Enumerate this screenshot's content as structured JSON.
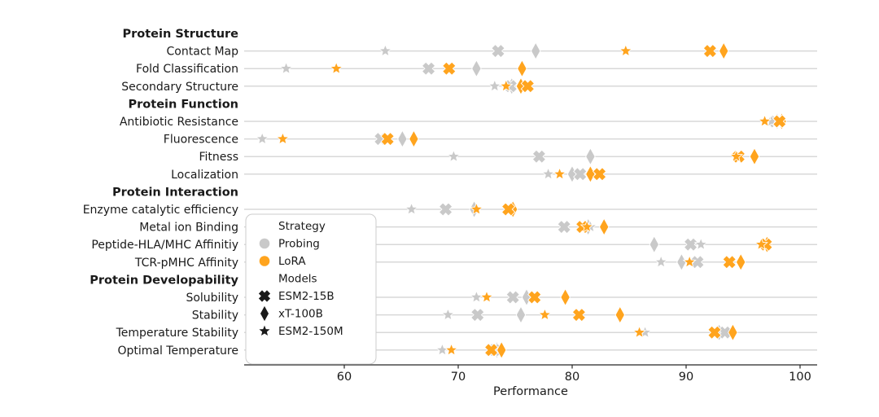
{
  "chart_data": {
    "type": "scatter",
    "title": "",
    "xlabel": "Performance",
    "x_ticks": [
      60,
      70,
      80,
      90,
      100
    ],
    "x_range": [
      51.2,
      101.6
    ],
    "grid": "horizontal-per-category",
    "legend_position": "lower-left-inside",
    "colors": {
      "probing": "#C9C9C9",
      "lora": "#FFA41E",
      "legend_marker": "#1a1a1a",
      "axis": "#262626",
      "grid": "#D8D8D8",
      "text": "#1a1a1a"
    },
    "legend": {
      "strategy_title": "Strategy",
      "strategies": [
        {
          "label": "Probing",
          "key": "probing"
        },
        {
          "label": "LoRA",
          "key": "lora"
        }
      ],
      "models_title": "Models",
      "models": [
        {
          "label": "ESM2-15B",
          "marker": "X"
        },
        {
          "label": "xT-100B",
          "marker": "diamond"
        },
        {
          "label": "ESM2-150M",
          "marker": "star"
        }
      ]
    },
    "groups": [
      {
        "header": "Protein Structure",
        "tasks": [
          {
            "name": "Contact Map",
            "probing": {
              "ESM2-15B": 73.5,
              "xT-100B": 76.8,
              "ESM2-150M": 63.6
            },
            "lora": {
              "ESM2-15B": 92.1,
              "xT-100B": 93.3,
              "ESM2-150M": 84.7
            }
          },
          {
            "name": "Fold Classification",
            "probing": {
              "ESM2-15B": 67.4,
              "xT-100B": 71.6,
              "ESM2-150M": 54.9
            },
            "lora": {
              "ESM2-15B": 69.2,
              "xT-100B": 75.6,
              "ESM2-150M": 59.3
            }
          },
          {
            "name": "Secondary Structure",
            "probing": {
              "ESM2-15B": 74.6,
              "xT-100B": 74.7,
              "ESM2-150M": 73.2
            },
            "lora": {
              "ESM2-15B": 76.1,
              "xT-100B": 75.5,
              "ESM2-150M": 74.2
            }
          }
        ]
      },
      {
        "header": "Protein Function",
        "tasks": [
          {
            "name": "Antibiotic Resistance",
            "probing": {
              "ESM2-15B": 97.8,
              "xT-100B": 98.0,
              "ESM2-150M": 97.5
            },
            "lora": {
              "ESM2-15B": 98.2,
              "xT-100B": 98.4,
              "ESM2-150M": 96.9
            }
          },
          {
            "name": "Fluorescence",
            "probing": {
              "ESM2-15B": 63.2,
              "xT-100B": 65.1,
              "ESM2-150M": 52.8
            },
            "lora": {
              "ESM2-15B": 63.8,
              "xT-100B": 66.1,
              "ESM2-150M": 54.6
            }
          },
          {
            "name": "Fitness",
            "probing": {
              "ESM2-15B": 77.1,
              "xT-100B": 81.6,
              "ESM2-150M": 69.6
            },
            "lora": {
              "ESM2-15B": 94.6,
              "xT-100B": 96.0,
              "ESM2-150M": 94.4
            }
          },
          {
            "name": "Localization",
            "probing": {
              "ESM2-15B": 80.7,
              "xT-100B": 80.0,
              "ESM2-150M": 77.9
            },
            "lora": {
              "ESM2-15B": 82.4,
              "xT-100B": 81.6,
              "ESM2-150M": 78.9
            }
          }
        ]
      },
      {
        "header": "Protein Interaction",
        "tasks": [
          {
            "name": "Enzyme catalytic efficiency",
            "probing": {
              "ESM2-15B": 68.9,
              "xT-100B": 71.4,
              "ESM2-150M": 65.9
            },
            "lora": {
              "ESM2-15B": 74.4,
              "xT-100B": 74.8,
              "ESM2-150M": 71.6
            }
          },
          {
            "name": "Metal ion Binding",
            "probing": {
              "ESM2-15B": 79.3,
              "xT-100B": 81.4,
              "ESM2-150M": 81.6
            },
            "lora": {
              "ESM2-15B": 80.9,
              "xT-100B": 82.8,
              "ESM2-150M": 81.3
            }
          },
          {
            "name": "Peptide-HLA/MHC Affinitiy",
            "probing": {
              "ESM2-15B": 90.4,
              "xT-100B": 87.2,
              "ESM2-150M": 91.3
            },
            "lora": {
              "ESM2-15B": 97.0,
              "xT-100B": 97.1,
              "ESM2-150M": 96.6
            }
          },
          {
            "name": "TCR-pMHC Affinity",
            "probing": {
              "ESM2-15B": 91.0,
              "xT-100B": 89.6,
              "ESM2-150M": 87.8
            },
            "lora": {
              "ESM2-15B": 93.8,
              "xT-100B": 94.8,
              "ESM2-150M": 90.3
            }
          }
        ]
      },
      {
        "header": "Protein Developability",
        "tasks": [
          {
            "name": "Solubility",
            "probing": {
              "ESM2-15B": 74.8,
              "xT-100B": 76.0,
              "ESM2-150M": 71.6
            },
            "lora": {
              "ESM2-15B": 76.7,
              "xT-100B": 79.4,
              "ESM2-150M": 72.5
            }
          },
          {
            "name": "Stability",
            "probing": {
              "ESM2-15B": 71.7,
              "xT-100B": 75.5,
              "ESM2-150M": 69.1
            },
            "lora": {
              "ESM2-15B": 80.6,
              "xT-100B": 84.2,
              "ESM2-150M": 77.6
            }
          },
          {
            "name": "Temperature Stability",
            "probing": {
              "ESM2-15B": 93.4,
              "xT-100B": 92.9,
              "ESM2-150M": 86.4
            },
            "lora": {
              "ESM2-15B": 92.5,
              "xT-100B": 94.1,
              "ESM2-150M": 85.9
            }
          },
          {
            "name": "Optimal Temperature",
            "probing": {
              "ESM2-15B": 73.2,
              "xT-100B": 73.4,
              "ESM2-150M": 68.6
            },
            "lora": {
              "ESM2-15B": 72.9,
              "xT-100B": 73.8,
              "ESM2-150M": 69.4
            }
          }
        ]
      }
    ]
  }
}
